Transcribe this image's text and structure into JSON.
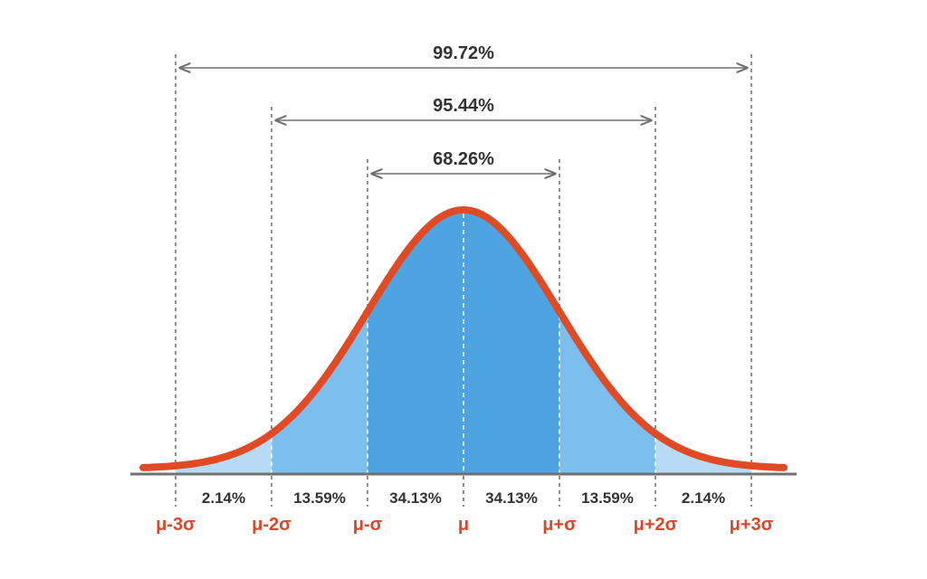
{
  "colors": {
    "curve": "#e04a24",
    "inner_fill": "#4da4e0",
    "middle_fill": "#7cbfef",
    "outer_fill": "#b8dbf5",
    "axis": "#707070",
    "guide": "#555555",
    "text": "#333333",
    "sigma_text": "#d9482a"
  },
  "intervals": [
    {
      "label": "99.72%",
      "from": -3,
      "to": 3
    },
    {
      "label": "95.44%",
      "from": -2,
      "to": 2
    },
    {
      "label": "68.26%",
      "from": -1,
      "to": 1
    }
  ],
  "regions": [
    {
      "from": -3,
      "to": -2,
      "label": "2.14%",
      "tier": "outer"
    },
    {
      "from": -2,
      "to": -1,
      "label": "13.59%",
      "tier": "middle"
    },
    {
      "from": -1,
      "to": 0,
      "label": "34.13%",
      "tier": "inner"
    },
    {
      "from": 0,
      "to": 1,
      "label": "34.13%",
      "tier": "inner"
    },
    {
      "from": 1,
      "to": 2,
      "label": "13.59%",
      "tier": "middle"
    },
    {
      "from": 2,
      "to": 3,
      "label": "2.14%",
      "tier": "outer"
    }
  ],
  "sigma_labels": [
    {
      "value": -3,
      "label": "μ-3σ"
    },
    {
      "value": -2,
      "label": "μ-2σ"
    },
    {
      "value": -1,
      "label": "μ-σ"
    },
    {
      "value": 0,
      "label": "μ"
    },
    {
      "value": 1,
      "label": "μ+σ"
    },
    {
      "value": 2,
      "label": "μ+2σ"
    },
    {
      "value": 3,
      "label": "μ+3σ"
    }
  ]
}
